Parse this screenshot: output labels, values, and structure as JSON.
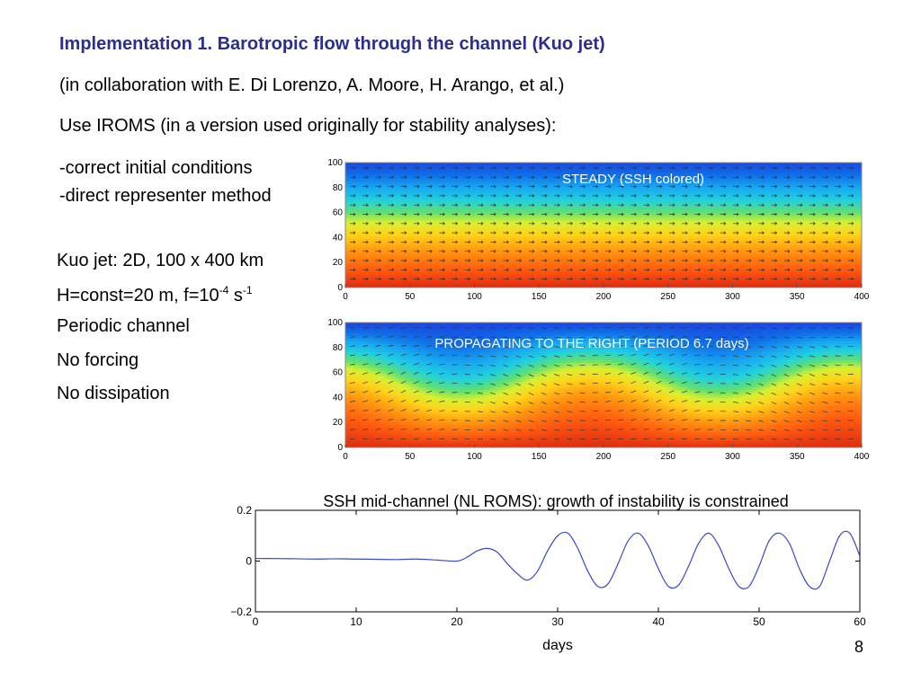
{
  "slide": {
    "title": "Implementation 1. Barotropic flow through the channel (Kuo jet)",
    "collaboration": "(in collaboration with E. Di Lorenzo, A. Moore, H. Arango, et al.)",
    "use_iroms": "Use IROMS (in a version used originally for stability analyses):",
    "bullets": [
      "-correct initial conditions",
      "-direct representer method"
    ],
    "spec": {
      "kuo": "Kuo jet: 2D, 100 x 400 km",
      "h_pre": "H=const=20 m, f=10",
      "h_exp1": "-4",
      "h_mid": " s",
      "h_exp2": "-1",
      "periodic": "Periodic channel",
      "forcing": "No forcing",
      "dissipation": "No dissipation"
    },
    "page_number": "8"
  },
  "chart_data": [
    {
      "type": "heatmap",
      "annotation": "STEADY (SSH colored)",
      "x_ticks": [
        "0",
        "50",
        "100",
        "150",
        "200",
        "250",
        "300",
        "350",
        "400"
      ],
      "y_ticks": [
        "0",
        "20",
        "40",
        "60",
        "80",
        "100"
      ],
      "xlim": [
        0,
        400
      ],
      "ylim": [
        0,
        100
      ],
      "colormap": [
        "#e03010",
        "#ff6a10",
        "#ffc010",
        "#f0f020",
        "#60e070",
        "#20d0e0",
        "#1090f0",
        "#1a48e0"
      ],
      "pattern": "uniform zonal jet, SSH decreasing northward, arrows eastward"
    },
    {
      "type": "heatmap",
      "annotation": "PROPAGATING TO THE RIGHT  (PERIOD 6.7 days)",
      "x_ticks": [
        "0",
        "50",
        "100",
        "150",
        "200",
        "250",
        "300",
        "350",
        "400"
      ],
      "y_ticks": [
        "0",
        "20",
        "40",
        "60",
        "80",
        "100"
      ],
      "xlim": [
        0,
        400
      ],
      "ylim": [
        0,
        100
      ],
      "pattern": "meandering jet, two wavelengths across channel"
    },
    {
      "type": "line",
      "title": "SSH mid-channel (NL ROMS): growth of instability is constrained",
      "xlabel": "days",
      "ylabel": "",
      "x_ticks": [
        "0",
        "10",
        "20",
        "30",
        "40",
        "50",
        "60"
      ],
      "y_ticks": [
        "0.2",
        "0",
        "−0.2"
      ],
      "xlim": [
        0,
        60
      ],
      "ylim": [
        -0.2,
        0.2
      ],
      "series_color": "#3b48c8",
      "x": [
        0,
        2,
        4,
        6,
        8,
        10,
        12,
        14,
        16,
        18,
        20,
        21,
        22,
        23,
        24,
        25,
        26,
        27,
        28,
        29,
        30,
        31,
        32,
        33,
        34,
        35,
        36,
        37,
        38,
        39,
        40,
        41,
        42,
        43,
        44,
        45,
        46,
        47,
        48,
        49,
        50,
        51,
        52,
        53,
        54,
        55,
        56,
        57,
        58,
        59,
        60
      ],
      "y": [
        0.01,
        0.01,
        0.009,
        0.008,
        0.009,
        0.008,
        0.007,
        0.006,
        0.008,
        0.004,
        0.0,
        0.015,
        0.04,
        0.05,
        0.035,
        -0.01,
        -0.05,
        -0.075,
        -0.04,
        0.04,
        0.1,
        0.11,
        0.05,
        -0.04,
        -0.1,
        -0.09,
        -0.01,
        0.08,
        0.11,
        0.06,
        -0.03,
        -0.1,
        -0.095,
        -0.02,
        0.07,
        0.11,
        0.06,
        -0.03,
        -0.1,
        -0.1,
        -0.02,
        0.08,
        0.11,
        0.07,
        -0.03,
        -0.1,
        -0.1,
        0.0,
        0.1,
        0.11,
        0.02
      ]
    }
  ]
}
